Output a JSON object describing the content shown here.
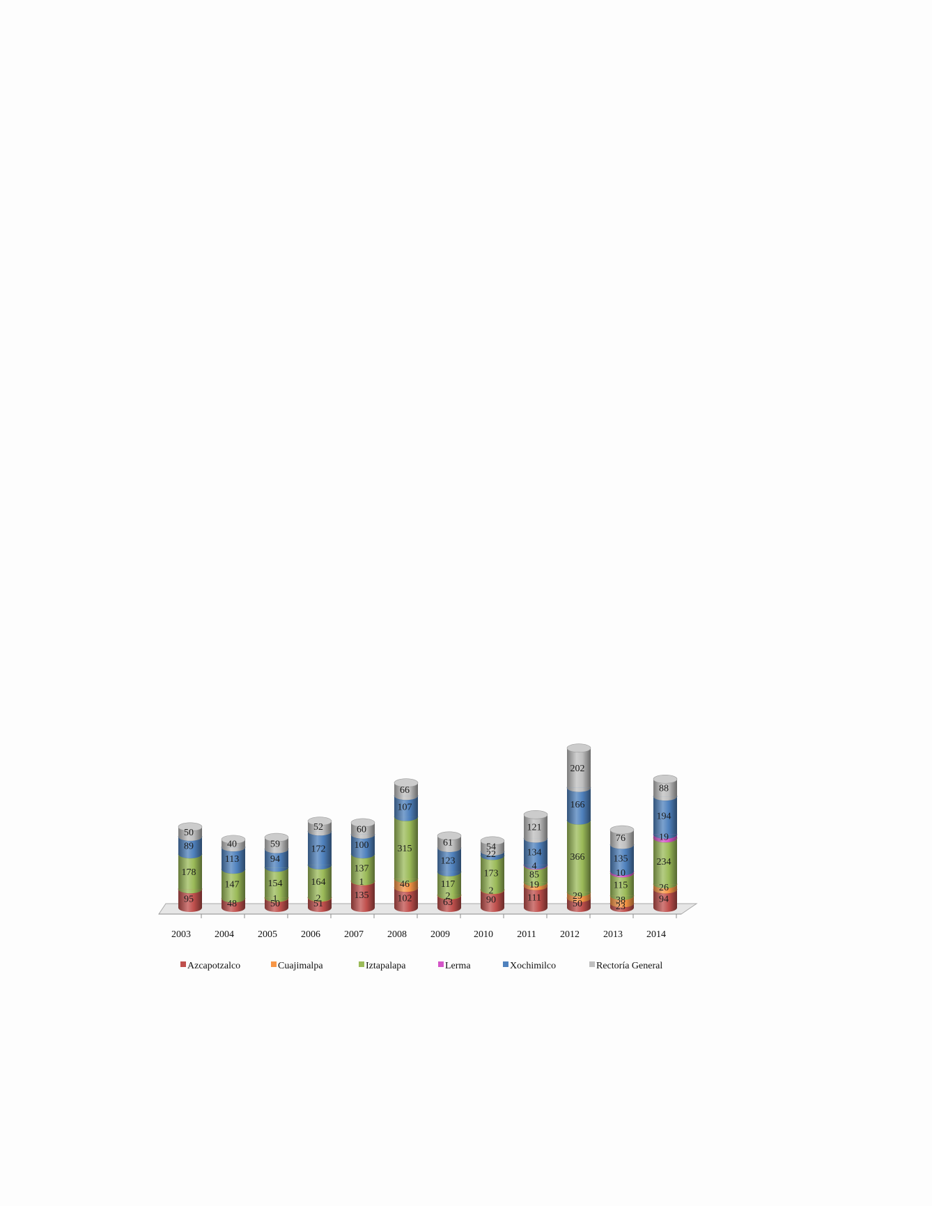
{
  "chart_data": {
    "type": "bar",
    "stacked": true,
    "style": "3d-cylinder",
    "title": "",
    "xlabel": "",
    "ylabel": "",
    "ylim": [
      0,
      1100
    ],
    "grid": false,
    "legend_position": "bottom",
    "categories": [
      "2003",
      "2004",
      "2005",
      "2006",
      "2007",
      "2008",
      "2009",
      "2010",
      "2011",
      "2012",
      "2013",
      "2014"
    ],
    "series": [
      {
        "name": "Azcapotzalco",
        "color": "#c0504d",
        "values": [
          95,
          48,
          50,
          51,
          135,
          102,
          63,
          90,
          111,
          50,
          23,
          94
        ]
      },
      {
        "name": "Cuajimalpa",
        "color": "#f79646",
        "values": [
          null,
          null,
          1,
          2,
          1,
          46,
          2,
          2,
          19,
          29,
          38,
          26
        ]
      },
      {
        "name": "Iztapalapa",
        "color": "#9bbb59",
        "values": [
          178,
          147,
          154,
          164,
          137,
          315,
          117,
          173,
          85,
          366,
          115,
          234
        ]
      },
      {
        "name": "Lerma",
        "color": "#d455c8",
        "values": [
          null,
          null,
          null,
          null,
          null,
          null,
          null,
          null,
          4,
          null,
          10,
          19
        ]
      },
      {
        "name": "Xochimilco",
        "color": "#4f81bd",
        "values": [
          89,
          113,
          94,
          172,
          100,
          107,
          123,
          22,
          134,
          166,
          135,
          194
        ]
      },
      {
        "name": "Rectoría General",
        "color": "#bfbfbf",
        "values": [
          50,
          40,
          59,
          52,
          60,
          66,
          61,
          54,
          121,
          202,
          76,
          88
        ]
      }
    ]
  }
}
